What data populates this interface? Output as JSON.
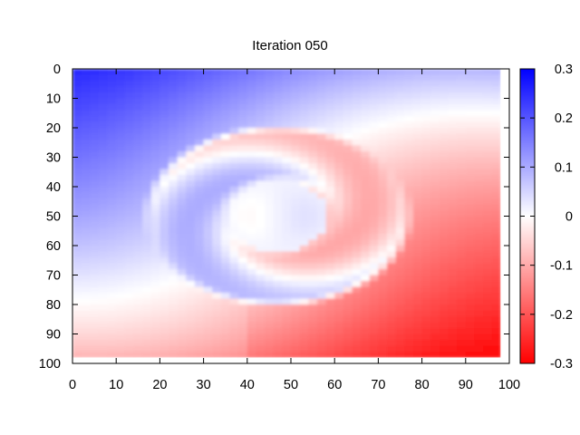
{
  "chart_data": {
    "type": "heatmap",
    "title": "Iteration 050",
    "xlabel": "",
    "ylabel": "",
    "xlim": [
      0,
      100
    ],
    "ylim": [
      0,
      100
    ],
    "y_inverted": true,
    "x_ticks": [
      0,
      10,
      20,
      30,
      40,
      50,
      60,
      70,
      80,
      90,
      100
    ],
    "y_ticks": [
      0,
      10,
      20,
      30,
      40,
      50,
      60,
      70,
      80,
      90,
      100
    ],
    "data_extent": {
      "x": [
        0,
        98
      ],
      "y": [
        0,
        98
      ]
    },
    "colorbar": {
      "range": [
        -0.3,
        0.3
      ],
      "ticks": [
        0.3,
        0.2,
        0.1,
        0,
        -0.1,
        -0.2,
        -0.3
      ],
      "tick_labels": [
        "0.3",
        "0.2",
        "0.1",
        "0",
        "-0.1",
        "-0.2",
        "-0.3"
      ],
      "high_color": "#0000ff",
      "mid_color": "#ffffff",
      "low_color": "#ff0000"
    },
    "field": {
      "description_free": true,
      "background_gradient": {
        "left_value": 0.1,
        "right_value": -0.18
      },
      "spiral_center": [
        47,
        50
      ],
      "spiral_ring_inner_radius": 12,
      "spiral_ring_outer_radius": 31
    }
  }
}
